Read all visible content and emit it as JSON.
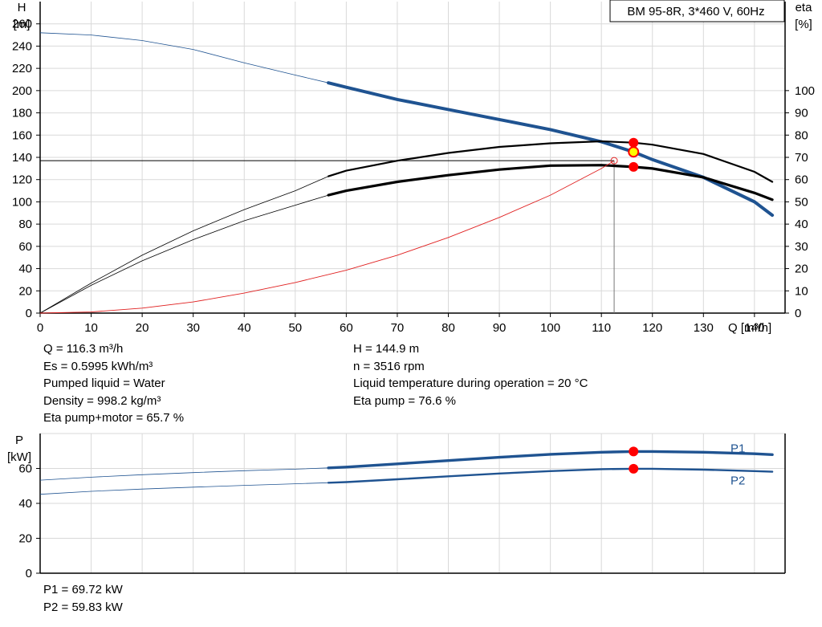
{
  "chart_data": [
    {
      "type": "line",
      "title": "BM 95-8R, 3*460 V, 60Hz",
      "xlabel": "Q [m³/h]",
      "ylabel_left": [
        "H",
        "[m]"
      ],
      "ylabel_right": [
        "eta",
        "[%]"
      ],
      "xlim": [
        0,
        146
      ],
      "ylim_left": [
        0,
        280
      ],
      "ylim_right": [
        0,
        140
      ],
      "x_ticks": [
        0,
        10,
        20,
        30,
        40,
        50,
        60,
        70,
        80,
        90,
        100,
        110,
        120,
        130,
        140
      ],
      "y_ticks_left": [
        0,
        20,
        40,
        60,
        80,
        100,
        120,
        140,
        160,
        180,
        200,
        220,
        240,
        260
      ],
      "y_ticks_right": [
        0,
        10,
        20,
        30,
        40,
        50,
        60,
        70,
        80,
        90,
        100
      ],
      "grid": true,
      "series": [
        {
          "key": "head",
          "axis": "left",
          "color": "#1f5391",
          "recommended_range": [
            56.5,
            143.5
          ],
          "x": [
            0,
            10,
            20,
            30,
            40,
            50,
            56.5,
            60,
            70,
            80,
            90,
            100,
            110,
            116.3,
            120,
            130,
            140,
            143.5
          ],
          "y": [
            252,
            250,
            245,
            237,
            225,
            214,
            207,
            203,
            192,
            183,
            174,
            165,
            154,
            144.9,
            138,
            122,
            100,
            88
          ]
        },
        {
          "key": "eta_pump",
          "axis": "right",
          "color": "#000000",
          "recommended_range": [
            56.5,
            143.5
          ],
          "x": [
            0,
            10,
            20,
            30,
            40,
            50,
            56.5,
            60,
            70,
            80,
            90,
            100,
            110,
            116.3,
            120,
            130,
            140,
            143.5
          ],
          "y": [
            0,
            13.5,
            26,
            37,
            46.5,
            55,
            61.5,
            64,
            68.5,
            72,
            74.7,
            76.3,
            77.2,
            76.6,
            75.7,
            71.5,
            63.5,
            59
          ]
        },
        {
          "key": "eta_pump_motor",
          "axis": "right",
          "color": "#000000",
          "recommended_range": [
            56.5,
            143.5
          ],
          "x": [
            0,
            10,
            20,
            30,
            40,
            50,
            56.5,
            60,
            70,
            80,
            90,
            100,
            110,
            116.3,
            120,
            130,
            140,
            143.5
          ],
          "y": [
            0,
            12.5,
            23.5,
            33,
            41.5,
            48.5,
            53,
            55,
            59,
            62,
            64.5,
            66.3,
            66.5,
            65.7,
            65,
            61,
            54,
            51
          ]
        },
        {
          "key": "system_curve",
          "axis": "left",
          "color": "#e02020",
          "recommended_range": [
            0,
            112.5
          ],
          "x": [
            0,
            10,
            20,
            30,
            40,
            50,
            60,
            70,
            80,
            90,
            100,
            110,
            112.5
          ],
          "y": [
            0,
            1,
            4.5,
            10,
            18,
            27.5,
            38.5,
            52,
            68,
            86,
            106,
            130,
            137
          ]
        }
      ],
      "duty_point": {
        "Q": 116.3,
        "H": 144.9,
        "eta_pump": 76.6,
        "eta_pump_motor": 65.7,
        "requested_Q": 112.5,
        "requested_H": 137
      }
    },
    {
      "type": "line",
      "title": "",
      "xlabel": "",
      "ylabel": [
        "P",
        "[kW]"
      ],
      "xlim": [
        0,
        146
      ],
      "ylim": [
        0,
        80
      ],
      "y_ticks": [
        0,
        20,
        40,
        60
      ],
      "x_gridlines": [
        10,
        20,
        30,
        40,
        50,
        60,
        70,
        80,
        90,
        100,
        110,
        120,
        130,
        140
      ],
      "grid": true,
      "series": [
        {
          "name": "P1",
          "color": "#1f5391",
          "recommended_range": [
            56.5,
            143.5
          ],
          "x": [
            0,
            10,
            20,
            30,
            40,
            50,
            56.5,
            60,
            70,
            80,
            90,
            100,
            110,
            116.3,
            120,
            130,
            140,
            143.5
          ],
          "y": [
            53.3,
            55,
            56.4,
            57.6,
            58.7,
            59.6,
            60.3,
            60.8,
            62.6,
            64.5,
            66.4,
            68.1,
            69.3,
            69.72,
            69.7,
            69.3,
            68.4,
            67.9
          ]
        },
        {
          "name": "P2",
          "color": "#1f5391",
          "recommended_range": [
            56.5,
            143.5
          ],
          "x": [
            0,
            10,
            20,
            30,
            40,
            50,
            56.5,
            60,
            70,
            80,
            90,
            100,
            110,
            116.3,
            120,
            130,
            140,
            143.5
          ],
          "y": [
            45.2,
            46.9,
            48.2,
            49.3,
            50.3,
            51.2,
            51.8,
            52.2,
            53.8,
            55.5,
            57.1,
            58.5,
            59.6,
            59.83,
            59.8,
            59.3,
            58.5,
            58.1
          ]
        }
      ],
      "duty_point": {
        "Q": 116.3,
        "P1": 69.72,
        "P2": 59.83
      }
    }
  ],
  "info": {
    "left_col": [
      "Q = 116.3 m³/h",
      "Es = 0.5995 kWh/m³",
      "Pumped liquid = Water",
      "Density = 998.2 kg/m³",
      "Eta pump+motor = 65.7 %"
    ],
    "right_col": [
      "H = 144.9 m",
      "n = 3516 rpm",
      "Liquid temperature during operation = 20 °C",
      "Eta pump = 76.6 %"
    ],
    "power_col": [
      "P1 = 69.72 kW",
      "P2 = 59.83 kW"
    ]
  },
  "colors": {
    "curve": "#1f5391",
    "system": "#e02020",
    "marker": "#ff0000",
    "duty": "#ffff00",
    "grid": "#d9d9d9"
  }
}
